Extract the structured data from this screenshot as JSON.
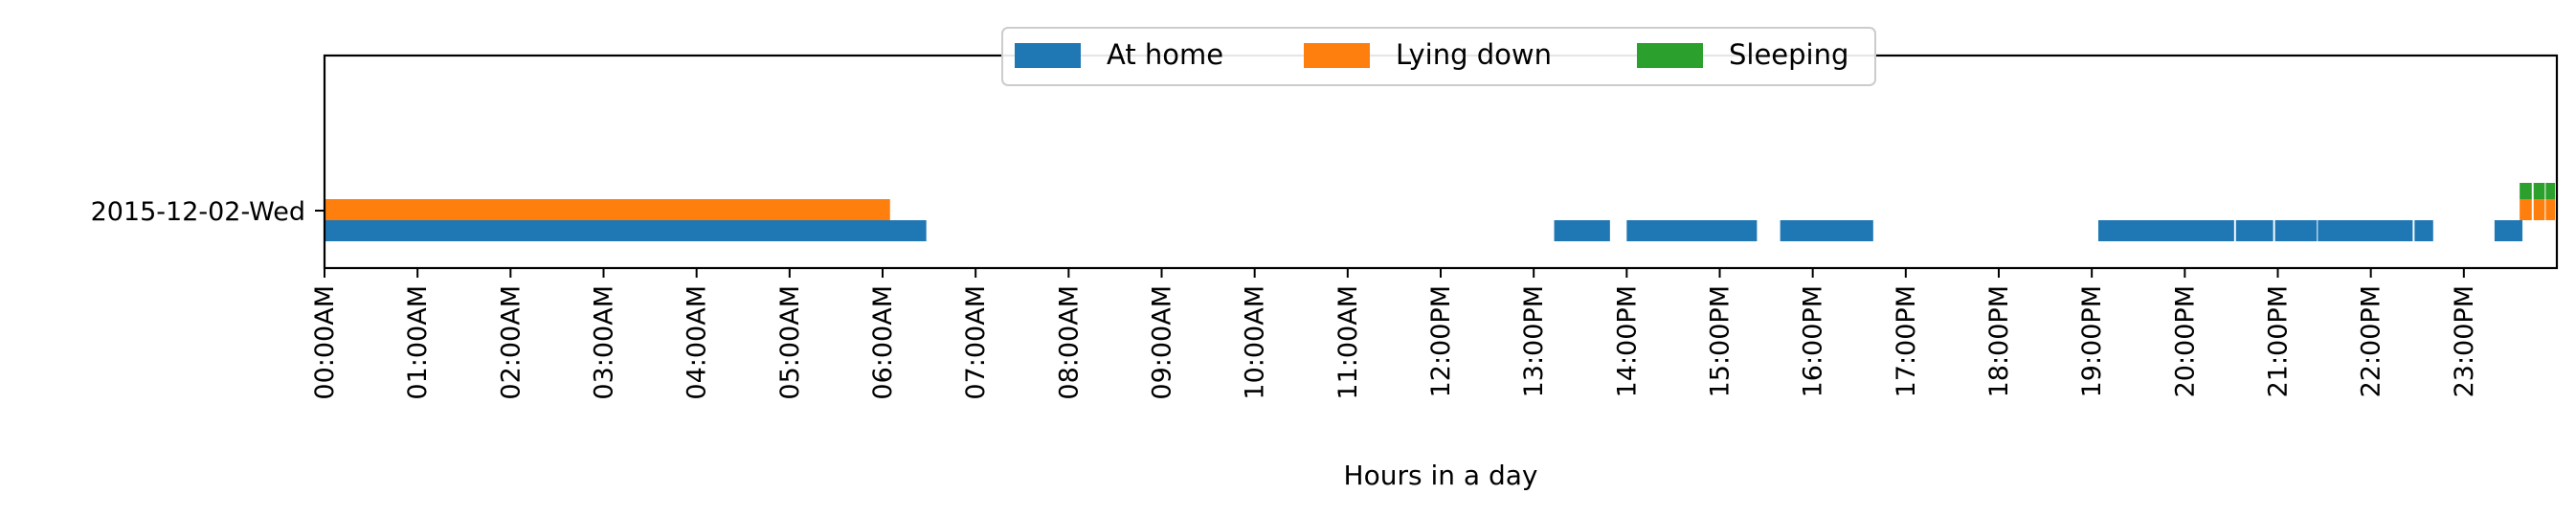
{
  "chart_data": {
    "type": "timeline",
    "xlabel": "Hours in a day",
    "xlim": [
      0,
      24
    ],
    "x_tick_labels": [
      "00:00AM",
      "01:00AM",
      "02:00AM",
      "03:00AM",
      "04:00AM",
      "05:00AM",
      "06:00AM",
      "07:00AM",
      "08:00AM",
      "09:00AM",
      "10:00AM",
      "11:00AM",
      "12:00PM",
      "13:00PM",
      "14:00PM",
      "15:00PM",
      "16:00PM",
      "17:00PM",
      "18:00PM",
      "19:00PM",
      "20:00PM",
      "21:00PM",
      "22:00PM",
      "23:00PM"
    ],
    "categories": [
      "2015-12-02-Wed"
    ],
    "legend": {
      "placement": "top-center",
      "entries": [
        "At home",
        "Lying down",
        "Sleeping"
      ]
    },
    "grid": false,
    "series": [
      {
        "name": "At home",
        "color": "#1f77b4",
        "intervals": [
          [
            0.0,
            6.47
          ],
          [
            13.22,
            13.82
          ],
          [
            14.0,
            15.4
          ],
          [
            15.65,
            16.65
          ],
          [
            19.07,
            20.53
          ],
          [
            20.55,
            20.95
          ],
          [
            20.97,
            21.42
          ],
          [
            21.43,
            22.45
          ],
          [
            22.47,
            22.67
          ],
          [
            23.33,
            23.63
          ]
        ]
      },
      {
        "name": "Lying down",
        "color": "#ff7f0e",
        "intervals": [
          [
            0.0,
            6.08
          ],
          [
            23.6,
            23.73
          ],
          [
            23.75,
            23.87
          ],
          [
            23.88,
            23.98
          ]
        ]
      },
      {
        "name": "Sleeping",
        "color": "#2ca02c",
        "intervals": [
          [
            23.6,
            23.73
          ],
          [
            23.75,
            23.87
          ],
          [
            23.88,
            23.98
          ]
        ]
      }
    ]
  }
}
